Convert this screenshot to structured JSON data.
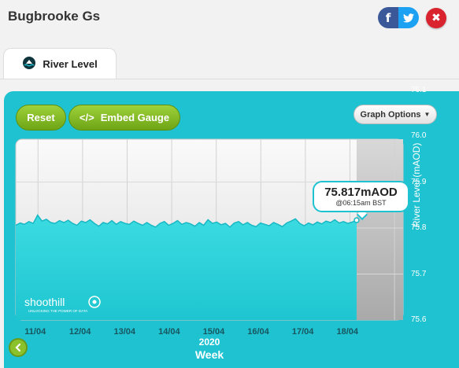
{
  "window": {
    "title": "Bugbrooke Gs"
  },
  "social": {
    "facebook_glyph": "f"
  },
  "close_glyph": "✖",
  "tab": {
    "label": "River Level"
  },
  "buttons": {
    "reset": "Reset",
    "embed": "Embed Gauge",
    "embed_icon": "</>",
    "graph_options": "Graph Options"
  },
  "tooltip": {
    "value": "75.817mAOD",
    "time": "@06:15am BST"
  },
  "brand": {
    "name": "shoothill",
    "tagline": "UNLOCKING THE POWER OF DATA"
  },
  "colors": {
    "panel": "#1fc2d1",
    "area": "#2dd4de",
    "accent_green": "#8bc22c"
  },
  "chart_data": {
    "type": "area",
    "series": [
      {
        "values": [
          75.806,
          75.811,
          75.808,
          75.814,
          75.81,
          75.828,
          75.815,
          75.819,
          75.812,
          75.81,
          75.816,
          75.812,
          75.817,
          75.81,
          75.806,
          75.815,
          75.812,
          75.818,
          75.81,
          75.804,
          75.812,
          75.809,
          75.816,
          75.808,
          75.814,
          75.81,
          75.808,
          75.815,
          75.81,
          75.806,
          75.812,
          75.806,
          75.802,
          75.81,
          75.814,
          75.806,
          75.81,
          75.816,
          75.808,
          75.812,
          75.809,
          75.804,
          75.812,
          75.806,
          75.818,
          75.81,
          75.813,
          75.807,
          75.81,
          75.802,
          75.811,
          75.814,
          75.807,
          75.812,
          75.806,
          75.803,
          75.811,
          75.808,
          75.805,
          75.812,
          75.808,
          75.803,
          75.811,
          75.815,
          75.82,
          75.81,
          75.805,
          75.811,
          75.807,
          75.813,
          75.809,
          75.815,
          75.812,
          75.818,
          75.811,
          75.814,
          75.81,
          75.813,
          75.817
        ]
      }
    ],
    "x_tick_labels": [
      "11/04",
      "12/04",
      "13/04",
      "14/04",
      "15/04",
      "16/04",
      "17/04",
      "18/04"
    ],
    "x_year": "2020",
    "xlabel": "Week",
    "ylabel": "River Level (mAOD)",
    "y_ticks": [
      "76.1",
      "76.0",
      "75.9",
      "75.8",
      "75.7",
      "75.6"
    ],
    "ylim": [
      75.6,
      76.1
    ],
    "data_end_fraction": 0.88,
    "grid": true
  }
}
